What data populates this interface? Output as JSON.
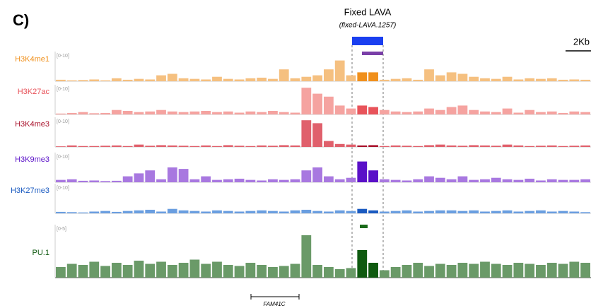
{
  "chart_data": {
    "type": "track",
    "panel_label": "C)",
    "title": "Fixed LAVA",
    "subtitle": "(fixed-LAVA.1257)",
    "scale_label": "2Kb",
    "gene_label": "FAM41C",
    "series": [
      {
        "name": "H3K4me1",
        "color": "#f5c080",
        "highlight_color": "#f0901c",
        "range_label": "[0-10]",
        "ylim": [
          0,
          10
        ],
        "values": [
          0.5,
          0.3,
          0.4,
          0.6,
          0.3,
          1,
          0.5,
          0.8,
          0.6,
          2,
          2.5,
          1,
          0.8,
          0.6,
          1.5,
          0.8,
          0.6,
          1,
          1.2,
          0.8,
          4,
          1,
          1.5,
          2,
          4,
          7,
          2,
          3,
          3,
          0.5,
          0.8,
          1,
          0.5,
          4,
          2,
          3,
          2.5,
          1.5,
          1,
          0.8,
          1.5,
          0.6,
          1,
          0.8,
          1,
          0.5,
          0.6,
          0.5
        ]
      },
      {
        "name": "H3K27ac",
        "color": "#f5a3a0",
        "highlight_color": "#e8535a",
        "range_label": "[0-10]",
        "ylim": [
          0,
          10
        ],
        "values": [
          0.3,
          0.5,
          0.8,
          0.4,
          0.5,
          1.5,
          1.2,
          0.8,
          1,
          1.5,
          1,
          0.8,
          1,
          1.2,
          0.8,
          1,
          0.6,
          1,
          0.8,
          1.2,
          0.8,
          0.6,
          9,
          7,
          6,
          3,
          2,
          3,
          2.5,
          1.5,
          1,
          0.8,
          1,
          2,
          1.5,
          2.5,
          3,
          1.5,
          1,
          0.8,
          2,
          0.6,
          1.5,
          0.8,
          1,
          0.5,
          1,
          0.8
        ]
      },
      {
        "name": "H3K4me3",
        "color": "#e0606c",
        "highlight_color": "#a8102a",
        "range_label": "[0-10]",
        "ylim": [
          0,
          10
        ],
        "values": [
          0.2,
          0.5,
          0.3,
          0.3,
          0.4,
          0.5,
          0.3,
          0.8,
          0.4,
          0.6,
          0.5,
          0.4,
          0.3,
          0.5,
          0.3,
          0.6,
          0.4,
          0.3,
          0.5,
          0.4,
          0.6,
          0.5,
          9,
          8,
          2,
          1,
          0.8,
          0.5,
          0.6,
          0.3,
          0.5,
          0.4,
          0.3,
          0.6,
          0.8,
          0.5,
          0.4,
          0.6,
          0.5,
          0.4,
          0.8,
          0.5,
          0.3,
          0.4,
          0.5,
          0.3,
          0.4,
          0.5
        ]
      },
      {
        "name": "H3K9me3",
        "color": "#a878e0",
        "highlight_color": "#5a10c8",
        "range_label": "[0-10]",
        "ylim": [
          0,
          10
        ],
        "values": [
          0.8,
          1,
          0.5,
          0.6,
          0.4,
          0.5,
          2,
          3,
          4,
          1,
          5,
          4.5,
          1,
          2,
          0.8,
          1,
          1.2,
          0.8,
          0.6,
          1,
          0.8,
          1,
          4,
          5,
          2,
          1,
          1.5,
          7,
          4,
          1,
          0.8,
          0.6,
          1,
          2,
          1.5,
          1,
          2,
          0.8,
          1,
          1.5,
          1,
          0.8,
          1.2,
          0.6,
          1,
          0.8,
          0.8,
          1
        ]
      },
      {
        "name": "H3K27me3",
        "color": "#6a9ee0",
        "highlight_color": "#1a5ac0",
        "range_label": "[0-10]",
        "ylim": [
          0,
          10
        ],
        "values": [
          0.5,
          0.4,
          0.3,
          0.6,
          0.8,
          0.5,
          0.8,
          1,
          1.2,
          0.6,
          1.5,
          1,
          0.8,
          0.6,
          1,
          0.8,
          0.6,
          0.8,
          1,
          0.8,
          0.6,
          1,
          1.2,
          0.8,
          0.6,
          1,
          0.8,
          1.5,
          1,
          0.6,
          0.8,
          1,
          0.6,
          0.8,
          1,
          1,
          0.8,
          1,
          0.6,
          0.8,
          1,
          0.6,
          0.8,
          1,
          0.6,
          0.8,
          0.6,
          0.4
        ]
      },
      {
        "name": "PU.1",
        "color": "#6a9a68",
        "highlight_color": "#0f5a10",
        "range_label": "[0-5]",
        "ylim": [
          0,
          5
        ],
        "values": [
          1,
          1.3,
          1.2,
          1.5,
          1.1,
          1.4,
          1.2,
          1.6,
          1.3,
          1.5,
          1.2,
          1.4,
          1.7,
          1.3,
          1.5,
          1.2,
          1.1,
          1.4,
          1.2,
          1,
          1.1,
          1.3,
          4,
          1.2,
          1,
          0.8,
          0.9,
          2.6,
          1.4,
          0.7,
          1,
          1.2,
          1.4,
          1.1,
          1.3,
          1.2,
          1.4,
          1.3,
          1.5,
          1.3,
          1.2,
          1.4,
          1.3,
          1.2,
          1.4,
          1.3,
          1.5,
          1.4
        ]
      }
    ]
  }
}
